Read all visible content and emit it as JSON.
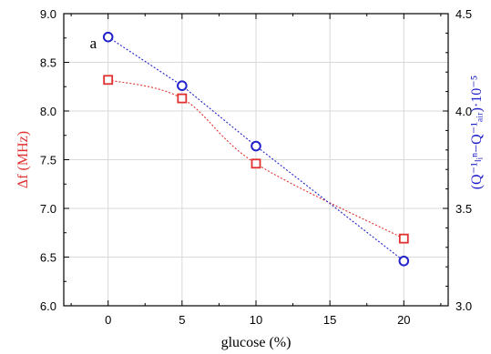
{
  "chart_data": {
    "type": "scatter",
    "panel_label": "a",
    "xlabel": "glucose (%)",
    "ylabel_left": "Δf (MHz)",
    "ylabel_right": "(Q⁻¹ₗᵢⁿ−Q⁻¹ₐᵢᵣ)·10⁻⁵",
    "xlim": [
      -3,
      23
    ],
    "ylim_left": [
      6.0,
      9.0
    ],
    "ylim_right": [
      3.0,
      4.5
    ],
    "x_ticks": [
      0,
      5,
      10,
      15,
      20
    ],
    "y_left_ticks": [
      "6.0",
      "6.5",
      "7.0",
      "7.5",
      "8.0",
      "8.5",
      "9.0"
    ],
    "y_right_ticks": [
      "3.0",
      "3.5",
      "4.0",
      "4.5"
    ],
    "grid": true,
    "series": [
      {
        "axis": "left",
        "marker": "square",
        "color": "#e03030",
        "x": [
          0,
          5,
          10,
          20
        ],
        "y": [
          8.32,
          8.13,
          7.46,
          6.69
        ]
      },
      {
        "axis": "right",
        "marker": "circle",
        "color": "#2222cc",
        "x": [
          0,
          5,
          10,
          20
        ],
        "y": [
          4.38,
          4.13,
          3.82,
          3.23
        ]
      }
    ]
  }
}
